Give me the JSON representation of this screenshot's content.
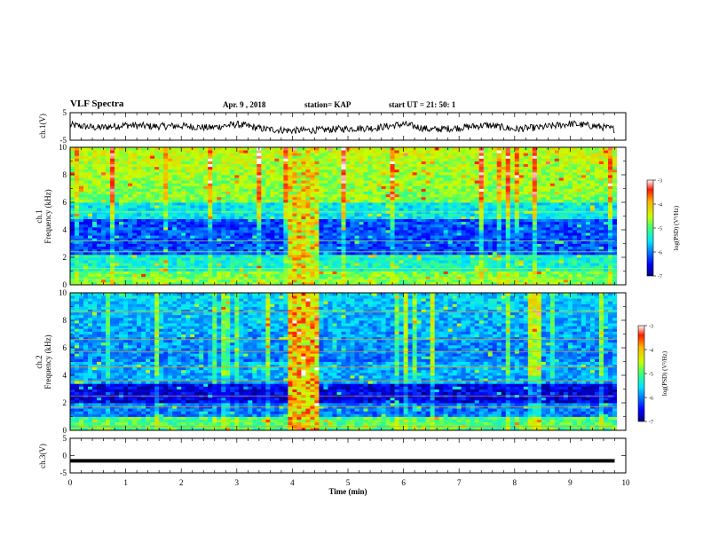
{
  "header": {
    "title": "VLF Spectra",
    "date": "Apr. 9 , 2018",
    "station": "station= KAP",
    "start": "start UT = 21: 50: 1"
  },
  "colorbar": {
    "label": "log(PSD) (V²/Hz)",
    "ticks": [
      "-3",
      "-4",
      "-5",
      "-6",
      "-7"
    ]
  },
  "chart_data": [
    {
      "type": "line",
      "name": "ch1-waveform",
      "ylabel": "ch.1(V)",
      "yticks": [
        -5,
        5
      ],
      "ylim": [
        -5,
        5
      ],
      "x": [
        0.0,
        0.5,
        1.0,
        1.5,
        2.0,
        2.5,
        3.0,
        3.5,
        4.0,
        4.5,
        5.0,
        5.5,
        6.0,
        6.5,
        7.0,
        7.5,
        8.0,
        8.5,
        9.0,
        9.5,
        9.8
      ],
      "y": [
        0.5,
        -0.5,
        0.5,
        0.0,
        0.2,
        -0.5,
        0.8,
        -1.0,
        -1.5,
        -1.3,
        -0.8,
        -0.5,
        0.8,
        -1.2,
        -0.5,
        0.5,
        -1.0,
        -0.3,
        1.0,
        0.0,
        -1.0
      ]
    },
    {
      "type": "heatmap",
      "name": "ch1-spectrogram",
      "ylabel": "ch.1",
      "ylabel2": "Frequency (kHz)",
      "yticks": [
        0,
        2,
        4,
        6,
        8,
        10
      ],
      "ylim": [
        0,
        10
      ],
      "zlim": [
        -7,
        -3
      ]
    },
    {
      "type": "heatmap",
      "name": "ch2-spectrogram",
      "ylabel": "ch.2",
      "ylabel2": "Frequency (kHz)",
      "yticks": [
        0,
        2,
        4,
        6,
        8,
        10
      ],
      "ylim": [
        0,
        10
      ],
      "zlim": [
        -7,
        -3
      ]
    },
    {
      "type": "line",
      "name": "ch3-waveform",
      "ylabel": "ch.3(V)",
      "yticks": [
        -5,
        0,
        5
      ],
      "ylim": [
        -5,
        5
      ],
      "x": [
        0,
        9.8
      ],
      "y": [
        -1.5,
        -1.5
      ]
    }
  ],
  "xaxis": {
    "label": "Time (min)",
    "ticks": [
      0,
      1,
      2,
      3,
      4,
      5,
      6,
      7,
      8,
      9,
      10
    ],
    "xlim": [
      0,
      10
    ]
  }
}
